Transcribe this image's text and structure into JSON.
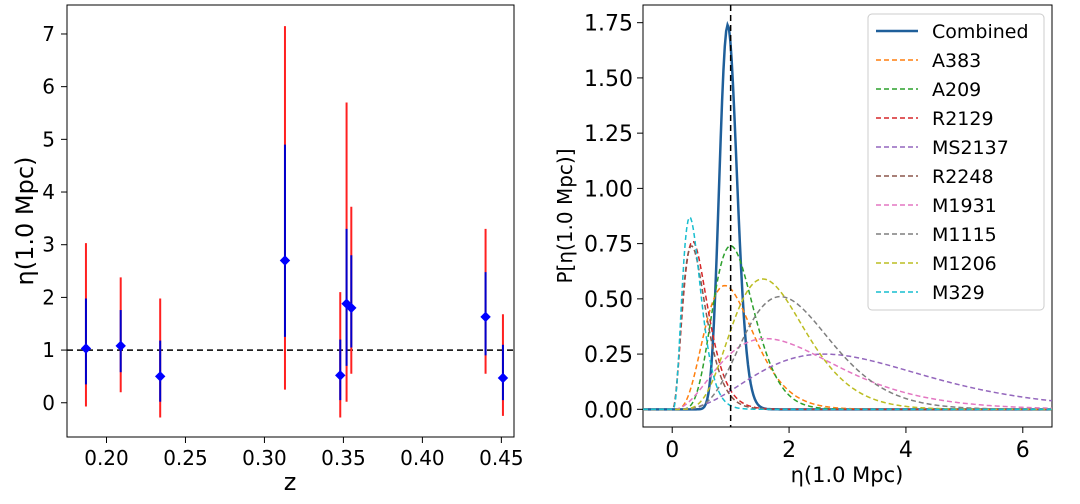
{
  "chart_data": [
    {
      "type": "scatter",
      "title": "",
      "xlabel": "z",
      "ylabel": "η(1.0 Mpc)",
      "xlim": [
        0.175,
        0.458
      ],
      "ylim": [
        -0.65,
        7.55
      ],
      "xticks": [
        0.2,
        0.25,
        0.3,
        0.35,
        0.4,
        0.45
      ],
      "xtick_labels": [
        "0.20",
        "0.25",
        "0.30",
        "0.35",
        "0.40",
        "0.45"
      ],
      "yticks": [
        0,
        1,
        2,
        3,
        4,
        5,
        6,
        7
      ],
      "ytick_labels": [
        "0",
        "1",
        "2",
        "3",
        "4",
        "5",
        "6",
        "7"
      ],
      "reference_line": {
        "y": 1.0,
        "style": "dashed",
        "color": "#000000"
      },
      "marker_color": "#0000ff",
      "inner_error_color": "#0000cc",
      "outer_error_color": "#ff2020",
      "points": [
        {
          "z": 0.187,
          "eta": 1.03,
          "err68": [
            0.35,
            1.98
          ],
          "err95": [
            -0.07,
            3.03
          ]
        },
        {
          "z": 0.209,
          "eta": 1.08,
          "err68": [
            0.58,
            1.76
          ],
          "err95": [
            0.2,
            2.38
          ]
        },
        {
          "z": 0.234,
          "eta": 0.5,
          "err68": [
            0.02,
            1.18
          ],
          "err95": [
            -0.28,
            1.98
          ]
        },
        {
          "z": 0.313,
          "eta": 2.7,
          "err68": [
            1.25,
            4.9
          ],
          "err95": [
            0.25,
            7.15
          ]
        },
        {
          "z": 0.348,
          "eta": 0.52,
          "err68": [
            0.05,
            1.2
          ],
          "err95": [
            -0.28,
            2.1
          ]
        },
        {
          "z": 0.352,
          "eta": 1.88,
          "err68": [
            0.7,
            3.3
          ],
          "err95": [
            0.02,
            5.7
          ]
        },
        {
          "z": 0.355,
          "eta": 1.8,
          "err68": [
            1.05,
            2.8
          ],
          "err95": [
            0.55,
            3.72
          ]
        },
        {
          "z": 0.44,
          "eta": 1.63,
          "err68": [
            0.9,
            2.48
          ],
          "err95": [
            0.55,
            3.3
          ]
        },
        {
          "z": 0.451,
          "eta": 0.47,
          "err68": [
            0.05,
            1.1
          ],
          "err95": [
            -0.25,
            1.68
          ]
        }
      ]
    },
    {
      "type": "line",
      "title": "",
      "xlabel": "η(1.0 Mpc)",
      "ylabel": "P[η(1.0 Mpc)]",
      "xlim": [
        -0.5,
        6.5
      ],
      "ylim": [
        -0.08,
        1.83
      ],
      "xticks": [
        0,
        2,
        4,
        6
      ],
      "xtick_labels": [
        "0",
        "2",
        "4",
        "6"
      ],
      "yticks": [
        0,
        0.25,
        0.5,
        0.75,
        1.0,
        1.25,
        1.5,
        1.75
      ],
      "ytick_labels": [
        "0.00",
        "0.25",
        "0.50",
        "0.75",
        "1.00",
        "1.25",
        "1.50",
        "1.75"
      ],
      "reference_line": {
        "x": 1.0,
        "style": "dashed",
        "color": "#000000"
      },
      "legend_position": "top-right",
      "series": [
        {
          "name": "Combined",
          "color": "#1f5f9a",
          "style": "solid",
          "shape": "gamma",
          "mode": 0.95,
          "peak": 1.74,
          "k": 40
        },
        {
          "name": "A383",
          "color": "#ff7f0e",
          "style": "dashed",
          "shape": "gamma",
          "mode": 0.9,
          "peak": 0.56,
          "k": 4.5
        },
        {
          "name": "A209",
          "color": "#2ca02c",
          "style": "dashed",
          "shape": "gamma",
          "mode": 1.0,
          "peak": 0.74,
          "k": 8
        },
        {
          "name": "R2129",
          "color": "#d62728",
          "style": "dashed",
          "shape": "gamma",
          "mode": 0.35,
          "peak": 0.76,
          "k": 2.7
        },
        {
          "name": "MS2137",
          "color": "#9467bd",
          "style": "dashed",
          "shape": "gamma",
          "mode": 2.6,
          "peak": 0.25,
          "k": 3.2
        },
        {
          "name": "R2248",
          "color": "#8c564b",
          "style": "dashed",
          "shape": "gamma",
          "mode": 0.33,
          "peak": 0.74,
          "k": 2.7
        },
        {
          "name": "M1931",
          "color": "#e377c2",
          "style": "dashed",
          "shape": "gamma",
          "mode": 1.6,
          "peak": 0.32,
          "k": 2.5
        },
        {
          "name": "M1115",
          "color": "#7f7f7f",
          "style": "dashed",
          "shape": "gamma",
          "mode": 1.85,
          "peak": 0.51,
          "k": 6
        },
        {
          "name": "M1206",
          "color": "#bcbd22",
          "style": "dashed",
          "shape": "gamma",
          "mode": 1.55,
          "peak": 0.59,
          "k": 6
        },
        {
          "name": "M329",
          "color": "#17becf",
          "style": "dashed",
          "shape": "gamma",
          "mode": 0.3,
          "peak": 0.87,
          "k": 3.5
        }
      ]
    }
  ]
}
